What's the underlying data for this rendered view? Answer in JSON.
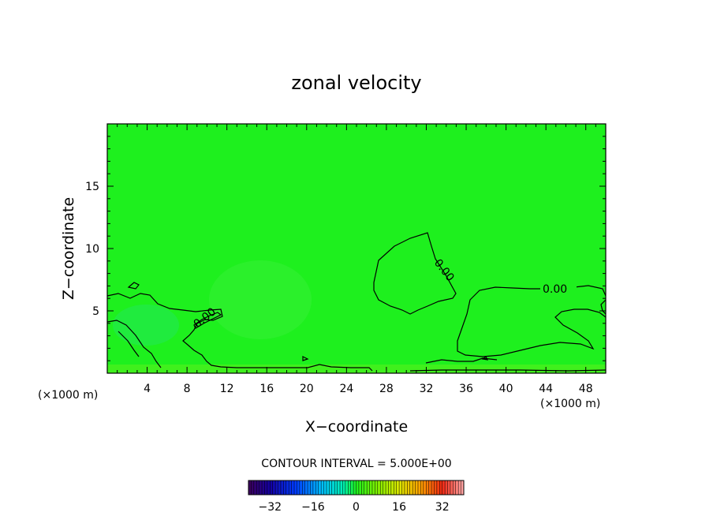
{
  "chart_data": {
    "type": "heatmap",
    "title": "zonal velocity",
    "xlabel": "X−coordinate",
    "ylabel": "Z−coordinate",
    "x_unit_left": "(×1000 m)",
    "x_unit_right": "(×1000 m)",
    "xlim": [
      0,
      50
    ],
    "ylim": [
      0,
      20
    ],
    "x_ticks": [
      4,
      8,
      12,
      16,
      20,
      24,
      28,
      32,
      36,
      40,
      44,
      48
    ],
    "y_ticks": [
      5,
      10,
      15
    ],
    "contour_interval_text": "CONTOUR INTERVAL = 5.000E+00",
    "contour_labels": [
      {
        "text": "0.00",
        "x": 10,
        "z": 4.5
      },
      {
        "text": "0.00",
        "x": 33.2,
        "z": 8.0
      },
      {
        "text": "0.00",
        "x": 45,
        "z": 6.8
      }
    ],
    "colorbar": {
      "min": -40,
      "max": 40,
      "ticks": [
        -32,
        -16,
        0,
        16,
        32
      ],
      "tick_labels": [
        "−32",
        "−16",
        "0",
        "16",
        "32"
      ]
    },
    "colors": {
      "field": "#1ef01e",
      "field_light": "#3cf03c",
      "contour": "#000000"
    }
  }
}
